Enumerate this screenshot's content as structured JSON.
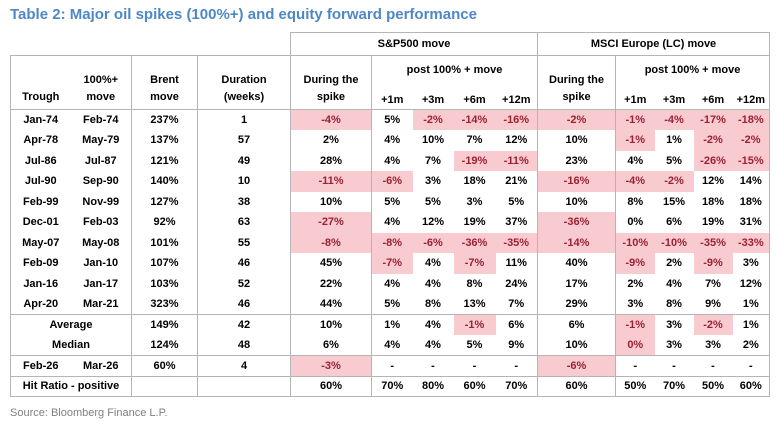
{
  "title": "Table 2: Major oil spikes (100%+) and equity forward performance",
  "source": "Source: Bloomberg Finance L.P.",
  "colors": {
    "accent_blue": "#4e87c5",
    "highlight_pink": "#f7cbd0",
    "negative_red": "#9c2133",
    "border_gray": "#b5b5b5"
  },
  "table": {
    "groups": [
      {
        "label": "S&P500 move"
      },
      {
        "label": "MSCI Europe (LC) move"
      }
    ],
    "headers": {
      "trough": "Trough",
      "move": "100%+\nmove",
      "brent": "Brent\nmove",
      "duration": "Duration\n(weeks)",
      "during": "During the\nspike",
      "post": "post 100% + move",
      "months": [
        "+1m",
        "+3m",
        "+6m",
        "+12m"
      ]
    },
    "rows": [
      {
        "c": [
          "Jan-74",
          "Feb-74",
          "237%",
          "1",
          "-4%",
          "5%",
          "-2%",
          "-14%",
          "-16%",
          "-2%",
          "-1%",
          "-4%",
          "-17%",
          "-18%"
        ],
        "hl": [
          4,
          6,
          7,
          8,
          9,
          10,
          11,
          12,
          13
        ]
      },
      {
        "c": [
          "Apr-78",
          "May-79",
          "137%",
          "57",
          "2%",
          "4%",
          "10%",
          "7%",
          "12%",
          "10%",
          "-1%",
          "1%",
          "-2%",
          "-2%"
        ],
        "hl": [
          10,
          12,
          13
        ]
      },
      {
        "c": [
          "Jul-86",
          "Jul-87",
          "121%",
          "49",
          "28%",
          "4%",
          "7%",
          "-19%",
          "-11%",
          "23%",
          "4%",
          "5%",
          "-26%",
          "-15%"
        ],
        "hl": [
          7,
          8,
          12,
          13
        ]
      },
      {
        "c": [
          "Jul-90",
          "Sep-90",
          "140%",
          "10",
          "-11%",
          "-6%",
          "3%",
          "18%",
          "21%",
          "-16%",
          "-4%",
          "-2%",
          "12%",
          "14%"
        ],
        "hl": [
          4,
          5,
          9,
          10,
          11
        ]
      },
      {
        "c": [
          "Feb-99",
          "Nov-99",
          "127%",
          "38",
          "10%",
          "5%",
          "5%",
          "3%",
          "5%",
          "10%",
          "8%",
          "15%",
          "18%",
          "18%"
        ],
        "hl": []
      },
      {
        "c": [
          "Dec-01",
          "Feb-03",
          "92%",
          "63",
          "-27%",
          "4%",
          "12%",
          "19%",
          "37%",
          "-36%",
          "0%",
          "6%",
          "19%",
          "31%"
        ],
        "hl": [
          4,
          9
        ]
      },
      {
        "c": [
          "May-07",
          "May-08",
          "101%",
          "55",
          "-8%",
          "-8%",
          "-6%",
          "-36%",
          "-35%",
          "-14%",
          "-10%",
          "-10%",
          "-35%",
          "-33%"
        ],
        "hl": [
          4,
          5,
          6,
          7,
          8,
          9,
          10,
          11,
          12,
          13
        ]
      },
      {
        "c": [
          "Feb-09",
          "Jan-10",
          "107%",
          "46",
          "45%",
          "-7%",
          "4%",
          "-7%",
          "11%",
          "40%",
          "-9%",
          "2%",
          "-9%",
          "3%"
        ],
        "hl": [
          5,
          7,
          10,
          12
        ]
      },
      {
        "c": [
          "Jan-16",
          "Jan-17",
          "103%",
          "52",
          "22%",
          "4%",
          "4%",
          "8%",
          "24%",
          "17%",
          "2%",
          "4%",
          "7%",
          "12%"
        ],
        "hl": []
      },
      {
        "c": [
          "Apr-20",
          "Mar-21",
          "323%",
          "46",
          "44%",
          "5%",
          "8%",
          "13%",
          "7%",
          "29%",
          "3%",
          "8%",
          "9%",
          "1%"
        ],
        "hl": []
      },
      {
        "c": [
          "Average",
          "",
          "149%",
          "42",
          "10%",
          "1%",
          "4%",
          "-1%",
          "6%",
          "6%",
          "-1%",
          "3%",
          "-2%",
          "1%"
        ],
        "hl": [
          7,
          10,
          12
        ],
        "merged": true,
        "sep": true
      },
      {
        "c": [
          "Median",
          "",
          "124%",
          "48",
          "6%",
          "4%",
          "4%",
          "5%",
          "9%",
          "10%",
          "0%",
          "3%",
          "3%",
          "2%"
        ],
        "hl": [
          10
        ],
        "merged": true
      },
      {
        "c": [
          "Feb-26",
          "Mar-26",
          "60%",
          "4",
          "-3%",
          "-",
          "-",
          "-",
          "-",
          "-6%",
          "-",
          "-",
          "-",
          "-"
        ],
        "hl": [
          4,
          9
        ],
        "sep": true
      },
      {
        "c": [
          "Hit Ratio - positive",
          "",
          "",
          "",
          "60%",
          "70%",
          "80%",
          "60%",
          "70%",
          "60%",
          "50%",
          "70%",
          "50%",
          "60%"
        ],
        "hl": [],
        "merged": true,
        "sep": true,
        "last": true
      }
    ]
  }
}
